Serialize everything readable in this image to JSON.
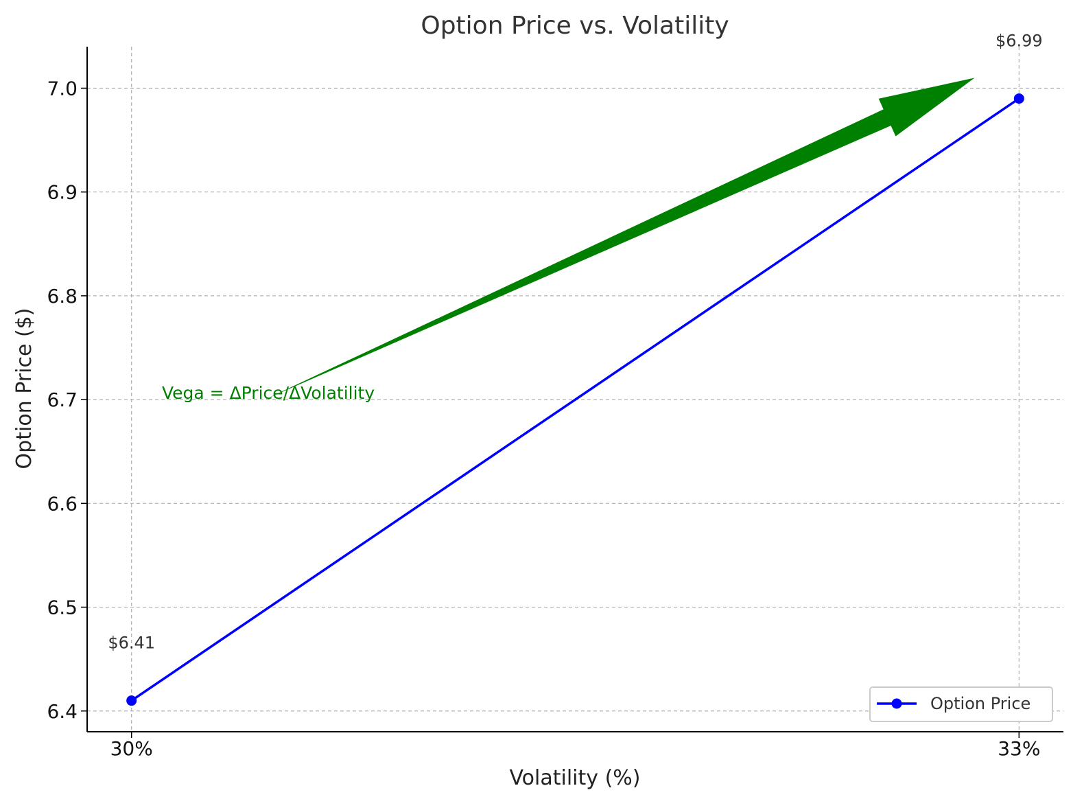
{
  "chart_data": {
    "type": "line",
    "title": "Option Price vs. Volatility",
    "xlabel": "Volatility (%)",
    "ylabel": "Option Price ($)",
    "categories": [
      "30%",
      "33%"
    ],
    "x": [
      30,
      33
    ],
    "xlim": [
      29.85,
      33.15
    ],
    "ylim": [
      6.38,
      7.04
    ],
    "yticks": [
      6.4,
      6.5,
      6.6,
      6.7,
      6.8,
      6.9,
      7.0
    ],
    "ytick_labels": [
      "6.4",
      "6.5",
      "6.6",
      "6.7",
      "6.8",
      "6.9",
      "7.0"
    ],
    "grid": true,
    "legend_placement": "lower-right",
    "series": [
      {
        "name": "Option Price",
        "values": [
          6.41,
          6.99
        ],
        "color": "#0000ff",
        "marker": "circle"
      }
    ],
    "data_labels": [
      "$6.41",
      "$6.99"
    ],
    "annotation": {
      "text": "Vega = ΔPrice/ΔVolatility",
      "color": "#008000",
      "text_x": 30.1,
      "text_y": 6.7,
      "arrow_from": [
        30.45,
        6.7
      ],
      "arrow_to": [
        32.85,
        7.01
      ]
    }
  }
}
